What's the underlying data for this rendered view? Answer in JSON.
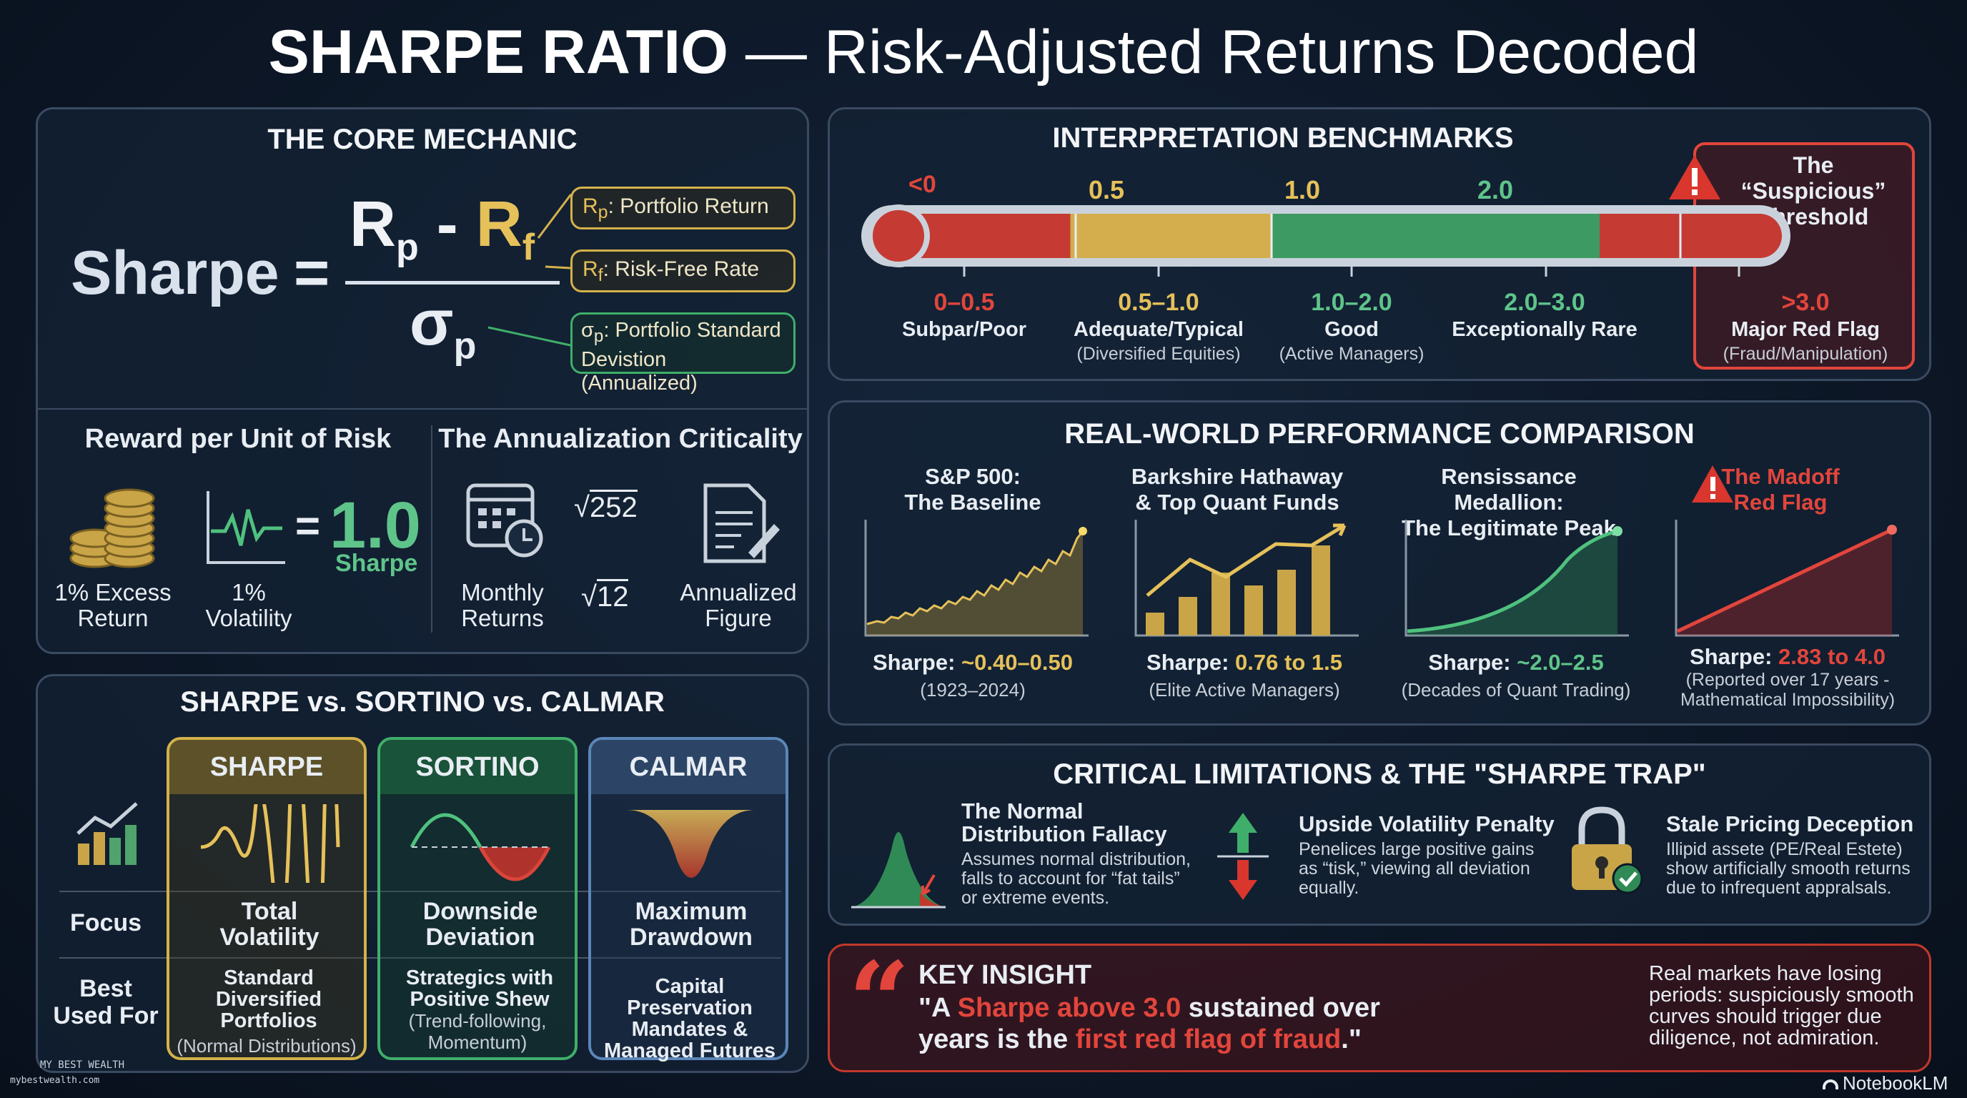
{
  "title": {
    "bold": "SHARPE RATIO",
    "rest": " — Risk-Adjusted Returns Decoded"
  },
  "core": {
    "title": "THE CORE MECHANIC",
    "sharpe": "Sharpe",
    "equals": "=",
    "num_rp": "R",
    "num_rp_sub": "p",
    "num_minus": " - ",
    "num_rf": "R",
    "num_rf_sub": "f",
    "den": "σ",
    "den_sub": "p",
    "def_rp_sym": "R",
    "def_rp_sub": "p",
    "def_rp": ": Portfolio Return",
    "def_rf_sym": "R",
    "def_rf_sub": "f",
    "def_rf": ": Risk-Free Rate",
    "def_sd_sym": "σ",
    "def_sd_sub": "p",
    "def_sd_line1": ": Portfolio Standard",
    "def_sd_line2": "Devistion (Annualized)",
    "reward_title": "Reward per Unit of Risk",
    "excess": "1% Excess Return",
    "vol": "1% Volatility",
    "eq": "=",
    "one": "1.0",
    "sharpe_small": "Sharpe",
    "annual_title": "The Annualization Criticality",
    "sqrt252": "252",
    "sqrt12": "12",
    "monthly": "Monthly Returns",
    "annualized": "Annualized Figure"
  },
  "compare": {
    "title": "SHARPE vs. SORTINO vs. CALMAR",
    "focus": "Focus",
    "best": "Best Used For",
    "cols": [
      {
        "name": "SHARPE",
        "focus": "Total Volatility",
        "best": "Standard Diversified Portfolios",
        "best_sub": "(Normal Distributions)"
      },
      {
        "name": "SORTINO",
        "focus": "Downside Deviation",
        "best": "Strategics with Positive Shew",
        "best_sub": "(Trend-following, Momentum)"
      },
      {
        "name": "CALMAR",
        "focus": "Maximum Drawdown",
        "best": "Capital Preservation Mandates & Managed Futures",
        "best_sub": ""
      }
    ]
  },
  "bench": {
    "title": "INTERPRETATION BENCHMARKS",
    "ticks": [
      "<0",
      "0.5",
      "1.0",
      "2.0"
    ],
    "suspicious": "The “Suspicious” Threshold",
    "ranges": [
      {
        "val": "0–0.5",
        "label": "Subpar/Poor",
        "sub": ""
      },
      {
        "val": "0.5–1.0",
        "label": "Adequate/Typical",
        "sub": "(Diversified Equities)"
      },
      {
        "val": "1.0–2.0",
        "label": "Good",
        "sub": "(Active Managers)"
      },
      {
        "val": "2.0–3.0",
        "label": "Exceptionally Rare",
        "sub": ""
      },
      {
        "val": ">3.0",
        "label": "Major Red Flag",
        "sub": "(Fraud/Manipulation)"
      }
    ]
  },
  "perf": {
    "title": "REAL-WORLD PERFORMANCE COMPARISON",
    "items": [
      {
        "t1": "S&P 500:",
        "t2": "The Baseline",
        "s_label": "Sharpe: ",
        "s_val": "~0.40–0.50",
        "sub1": "(1923–2024)",
        "sub2": ""
      },
      {
        "t1": "Barkshire Hathaway",
        "t2": "& Top Quant Funds",
        "s_label": "Sharpe: ",
        "s_val": "0.76 to 1.5",
        "sub1": "(Elite Active Managers)",
        "sub2": ""
      },
      {
        "t1": "Rensissance Medallion:",
        "t2": "The Legitimate Peak",
        "s_label": "Sharpe: ",
        "s_val": "~2.0–2.5",
        "sub1": "(Decades of Quant Trading)",
        "sub2": ""
      },
      {
        "t1": "The Madoff",
        "t2": "Red Flag",
        "s_label": "Sharpe: ",
        "s_val": "2.83 to 4.0",
        "sub1": "(Reported over 17 years -",
        "sub2": "Mathematical Impossibility)"
      }
    ]
  },
  "limits": {
    "title": "CRITICAL LIMITATIONS & THE \"SHARPE TRAP\"",
    "items": [
      {
        "h1": "The Normal",
        "h2": "Distribution Fallacy",
        "b": [
          "Assumes normal distribution,",
          "falls to account for “fat tails”",
          "or extreme events."
        ]
      },
      {
        "h1": "Upside Volatility Penalty",
        "h2": "",
        "b": [
          "Penelices large positive gains",
          "as “tisk,” viewing all deviation",
          "equally."
        ]
      },
      {
        "h1": "Stale Pricing Deception",
        "h2": "",
        "b": [
          "Illipid assete (PE/Real Estete)",
          "show artificially smooth returns",
          "due to infrequent appralsals."
        ]
      }
    ]
  },
  "insight": {
    "quote": "“",
    "title": "KEY INSIGHT",
    "l1a": "\"A ",
    "l1b": "Sharpe above 3.0",
    "l1c": " sustained over",
    "l2a": "years is the ",
    "l2b": "first red flag of fraud",
    "l2c": ".\"",
    "side": [
      "Real markets have losing",
      "periods: suspiciously smooth",
      "curves should trigger due",
      "diligence, not admiration."
    ]
  },
  "footer": {
    "brand1": "MY BEST WEALTH",
    "brand2": "mybestwealth.com",
    "notebook": "NotebookLM"
  },
  "colors": {
    "gold": "#e6c15a",
    "green": "#5fc48a",
    "red": "#e2453c",
    "blue": "#6f9ccf"
  }
}
